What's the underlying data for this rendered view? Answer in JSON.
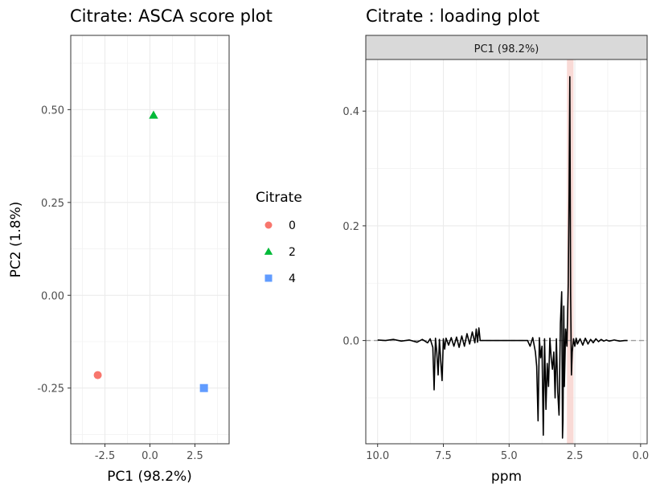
{
  "chart_data": [
    {
      "type": "scatter",
      "title": "Citrate: ASCA score plot",
      "xlabel": "PC1 (98.2%)",
      "ylabel": "PC2 (1.8%)",
      "xlim": [
        -4.4,
        4.4
      ],
      "ylim": [
        -0.4,
        0.7
      ],
      "xticks": [
        -2.5,
        0.0,
        2.5
      ],
      "xtick_labels": [
        "-2.5",
        "0.0",
        "2.5"
      ],
      "yticks": [
        -0.25,
        0.0,
        0.25,
        0.5
      ],
      "ytick_labels": [
        "-0.25",
        "0.00",
        "0.25",
        "0.50"
      ],
      "grid": true,
      "legend": {
        "title": "Citrate",
        "placement": "right",
        "entries": [
          {
            "label": "0",
            "shape": "circle",
            "color": "#F8766D"
          },
          {
            "label": "2",
            "shape": "triangle",
            "color": "#00BA38"
          },
          {
            "label": "4",
            "shape": "square",
            "color": "#619CFF"
          }
        ]
      },
      "points": [
        {
          "group": "0",
          "x": -2.9,
          "y": -0.215
        },
        {
          "group": "2",
          "x": 0.2,
          "y": 0.485
        },
        {
          "group": "4",
          "x": 3.0,
          "y": -0.25
        }
      ]
    },
    {
      "type": "line",
      "title": "Citrate : loading plot",
      "facet_label": "PC1 (98.2%)",
      "xlabel": "ppm",
      "ylabel": "",
      "x_reversed": true,
      "xlim": [
        10.45,
        -0.25
      ],
      "ylim": [
        -0.18,
        0.49
      ],
      "xticks": [
        10,
        7.5,
        5,
        2.5,
        0
      ],
      "xtick_labels": [
        "10.0",
        "7.5",
        "5.0",
        "2.5",
        "0.0"
      ],
      "yticks": [
        0.0,
        0.2,
        0.4
      ],
      "ytick_labels": [
        "0.0",
        "0.2",
        "0.4"
      ],
      "grid": true,
      "line_color": "#000000",
      "highlight_band": {
        "from": 2.55,
        "to": 2.8,
        "color": "#F8D3CF"
      },
      "series": [
        {
          "x": [
            10.0,
            9.7,
            9.4,
            9.1,
            8.8,
            8.5,
            8.3,
            8.1,
            8.0,
            7.9,
            7.85,
            7.8,
            7.75,
            7.7,
            7.65,
            7.6,
            7.55,
            7.5,
            7.45,
            7.4,
            7.3,
            7.2,
            7.1,
            7.0,
            6.9,
            6.8,
            6.7,
            6.6,
            6.5,
            6.4,
            6.3,
            6.25,
            6.2,
            6.15,
            6.1,
            6.0,
            5.0,
            4.3,
            4.2,
            4.1,
            4.0,
            3.95,
            3.9,
            3.85,
            3.8,
            3.75,
            3.7,
            3.65,
            3.6,
            3.55,
            3.5,
            3.45,
            3.4,
            3.35,
            3.3,
            3.25,
            3.2,
            3.15,
            3.1,
            3.05,
            3.0,
            2.97,
            2.95,
            2.92,
            2.9,
            2.85,
            2.8,
            2.75,
            2.72,
            2.69,
            2.66,
            2.63,
            2.6,
            2.55,
            2.5,
            2.45,
            2.4,
            2.3,
            2.2,
            2.1,
            2.0,
            1.9,
            1.8,
            1.7,
            1.6,
            1.5,
            1.4,
            1.3,
            1.2,
            1.0,
            0.8,
            0.6,
            0.5
          ],
          "y": [
            0.001,
            0.0,
            0.002,
            -0.001,
            0.001,
            -0.003,
            0.002,
            -0.004,
            0.003,
            -0.012,
            -0.086,
            0.004,
            -0.02,
            -0.06,
            0.002,
            -0.035,
            -0.07,
            0.003,
            -0.015,
            0.004,
            -0.008,
            0.005,
            -0.01,
            0.006,
            -0.012,
            0.008,
            -0.01,
            0.012,
            -0.006,
            0.015,
            -0.004,
            0.02,
            -0.003,
            0.022,
            0.0,
            0.0,
            0.0,
            0.0,
            -0.01,
            0.005,
            -0.02,
            -0.045,
            -0.14,
            0.005,
            -0.03,
            -0.01,
            -0.165,
            0.003,
            -0.12,
            -0.04,
            -0.08,
            0.004,
            -0.03,
            -0.05,
            -0.02,
            -0.1,
            0.003,
            -0.09,
            -0.13,
            0.03,
            0.085,
            -0.17,
            -0.14,
            0.06,
            -0.08,
            0.02,
            -0.01,
            0.1,
            0.26,
            0.46,
            0.08,
            -0.06,
            -0.02,
            0.003,
            -0.01,
            0.004,
            -0.006,
            0.003,
            -0.008,
            0.004,
            -0.006,
            0.002,
            -0.004,
            0.003,
            -0.002,
            0.002,
            -0.001,
            0.001,
            -0.001,
            0.001,
            -0.001,
            0.0,
            0.0
          ]
        }
      ]
    }
  ]
}
